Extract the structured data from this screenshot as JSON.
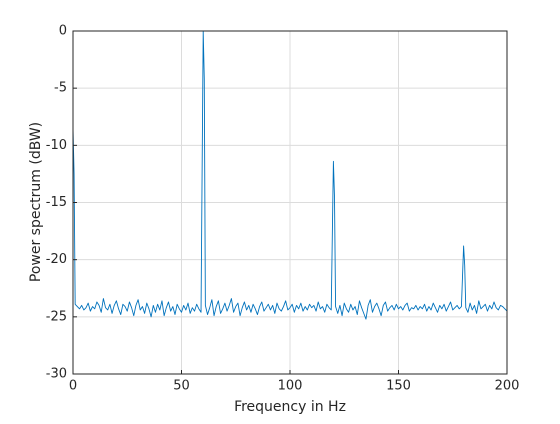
{
  "chart_data": {
    "type": "line",
    "xlabel": "Frequency in Hz",
    "ylabel": "Power spectrum (dBW)",
    "x": [
      0,
      0.5,
      1,
      2,
      3,
      4,
      5,
      6,
      7,
      8,
      9,
      10,
      11,
      12,
      13,
      14,
      15,
      16,
      17,
      18,
      19,
      20,
      21,
      22,
      23,
      24,
      25,
      26,
      27,
      28,
      29,
      30,
      31,
      32,
      33,
      34,
      35,
      36,
      37,
      38,
      39,
      40,
      41,
      42,
      43,
      44,
      45,
      46,
      47,
      48,
      49,
      50,
      51,
      52,
      53,
      54,
      55,
      56,
      57,
      58,
      59,
      60,
      60.5,
      61,
      62,
      63,
      64,
      65,
      66,
      67,
      68,
      69,
      70,
      71,
      72,
      73,
      74,
      75,
      76,
      77,
      78,
      79,
      80,
      81,
      82,
      83,
      84,
      85,
      86,
      87,
      88,
      89,
      90,
      91,
      92,
      93,
      94,
      95,
      96,
      97,
      98,
      99,
      100,
      101,
      102,
      103,
      104,
      105,
      106,
      107,
      108,
      109,
      110,
      111,
      112,
      113,
      114,
      115,
      116,
      117,
      118,
      119,
      120,
      120.5,
      121,
      122,
      123,
      124,
      125,
      126,
      127,
      128,
      129,
      130,
      131,
      132,
      133,
      134,
      135,
      136,
      137,
      138,
      139,
      140,
      141,
      142,
      143,
      144,
      145,
      146,
      147,
      148,
      149,
      150,
      151,
      152,
      153,
      154,
      155,
      156,
      157,
      158,
      159,
      160,
      161,
      162,
      163,
      164,
      165,
      166,
      167,
      168,
      169,
      170,
      171,
      172,
      173,
      174,
      175,
      176,
      177,
      178,
      179,
      180,
      180.5,
      181,
      182,
      183,
      184,
      185,
      186,
      187,
      188,
      189,
      190,
      191,
      192,
      193,
      194,
      195,
      196,
      197,
      198,
      199,
      200
    ],
    "series": [
      {
        "color": "#0072bd",
        "values": [
          -8.5,
          -12.5,
          -23.9,
          -24.1,
          -24.3,
          -24.0,
          -24.4,
          -24.2,
          -23.8,
          -24.5,
          -24.1,
          -24.3,
          -23.7,
          -24.0,
          -24.6,
          -23.4,
          -24.2,
          -24.4,
          -23.9,
          -24.7,
          -24.0,
          -23.6,
          -24.3,
          -24.8,
          -23.9,
          -24.1,
          -24.5,
          -23.7,
          -24.2,
          -24.9,
          -24.0,
          -23.5,
          -24.4,
          -24.1,
          -24.7,
          -23.8,
          -24.3,
          -25.0,
          -24.0,
          -24.6,
          -23.9,
          -24.4,
          -23.6,
          -24.9,
          -24.2,
          -23.7,
          -24.5,
          -24.1,
          -24.8,
          -23.9,
          -24.3,
          -24.6,
          -24.0,
          -24.4,
          -23.8,
          -24.7,
          -24.2,
          -24.5,
          -23.9,
          -24.3,
          -24.6,
          0,
          -4.2,
          -24.0,
          -24.8,
          -24.2,
          -23.5,
          -24.9,
          -24.1,
          -23.6,
          -24.7,
          -24.3,
          -23.8,
          -24.5,
          -24.0,
          -23.4,
          -24.6,
          -24.1,
          -23.8,
          -24.9,
          -24.2,
          -23.7,
          -24.4,
          -24.0,
          -24.6,
          -23.9,
          -24.3,
          -24.8,
          -24.1,
          -23.7,
          -24.5,
          -24.2,
          -23.9,
          -24.4,
          -24.0,
          -24.7,
          -23.8,
          -24.3,
          -24.5,
          -24.1,
          -23.6,
          -24.4,
          -24.2,
          -23.9,
          -24.6,
          -24.0,
          -24.3,
          -23.8,
          -24.5,
          -24.1,
          -24.4,
          -23.9,
          -24.2,
          -24.0,
          -24.5,
          -23.7,
          -24.3,
          -24.1,
          -24.6,
          -23.9,
          -24.2,
          -24.4,
          -11.4,
          -14.5,
          -24.1,
          -24.7,
          -24.0,
          -24.9,
          -23.8,
          -24.3,
          -24.6,
          -23.9,
          -24.4,
          -24.1,
          -24.8,
          -23.6,
          -24.2,
          -24.7,
          -25.2,
          -24.0,
          -23.5,
          -24.6,
          -24.1,
          -23.8,
          -24.3,
          -24.9,
          -24.0,
          -23.7,
          -24.5,
          -24.2,
          -24.0,
          -24.4,
          -23.9,
          -24.3,
          -24.1,
          -24.4,
          -24.0,
          -23.8,
          -24.5,
          -24.2,
          -24.3,
          -24.0,
          -24.4,
          -24.1,
          -24.3,
          -23.9,
          -24.5,
          -24.1,
          -24.4,
          -23.8,
          -24.2,
          -24.6,
          -24.0,
          -24.3,
          -23.9,
          -24.5,
          -24.1,
          -23.7,
          -24.4,
          -24.2,
          -24.0,
          -24.3,
          -24.1,
          -18.8,
          -20.5,
          -24.2,
          -24.6,
          -23.8,
          -24.4,
          -24.0,
          -24.7,
          -23.6,
          -24.3,
          -24.1,
          -23.9,
          -24.5,
          -24.0,
          -24.3,
          -23.7,
          -24.2,
          -24.4,
          -24.0,
          -24.1,
          -24.3,
          -24.5
        ]
      }
    ],
    "xlim": [
      0,
      200
    ],
    "xticks": [
      0,
      50,
      100,
      150,
      200
    ],
    "ylim": [
      -30,
      0
    ],
    "yticks": [
      -30,
      -25,
      -20,
      -15,
      -10,
      -5,
      0
    ],
    "grid": true
  }
}
